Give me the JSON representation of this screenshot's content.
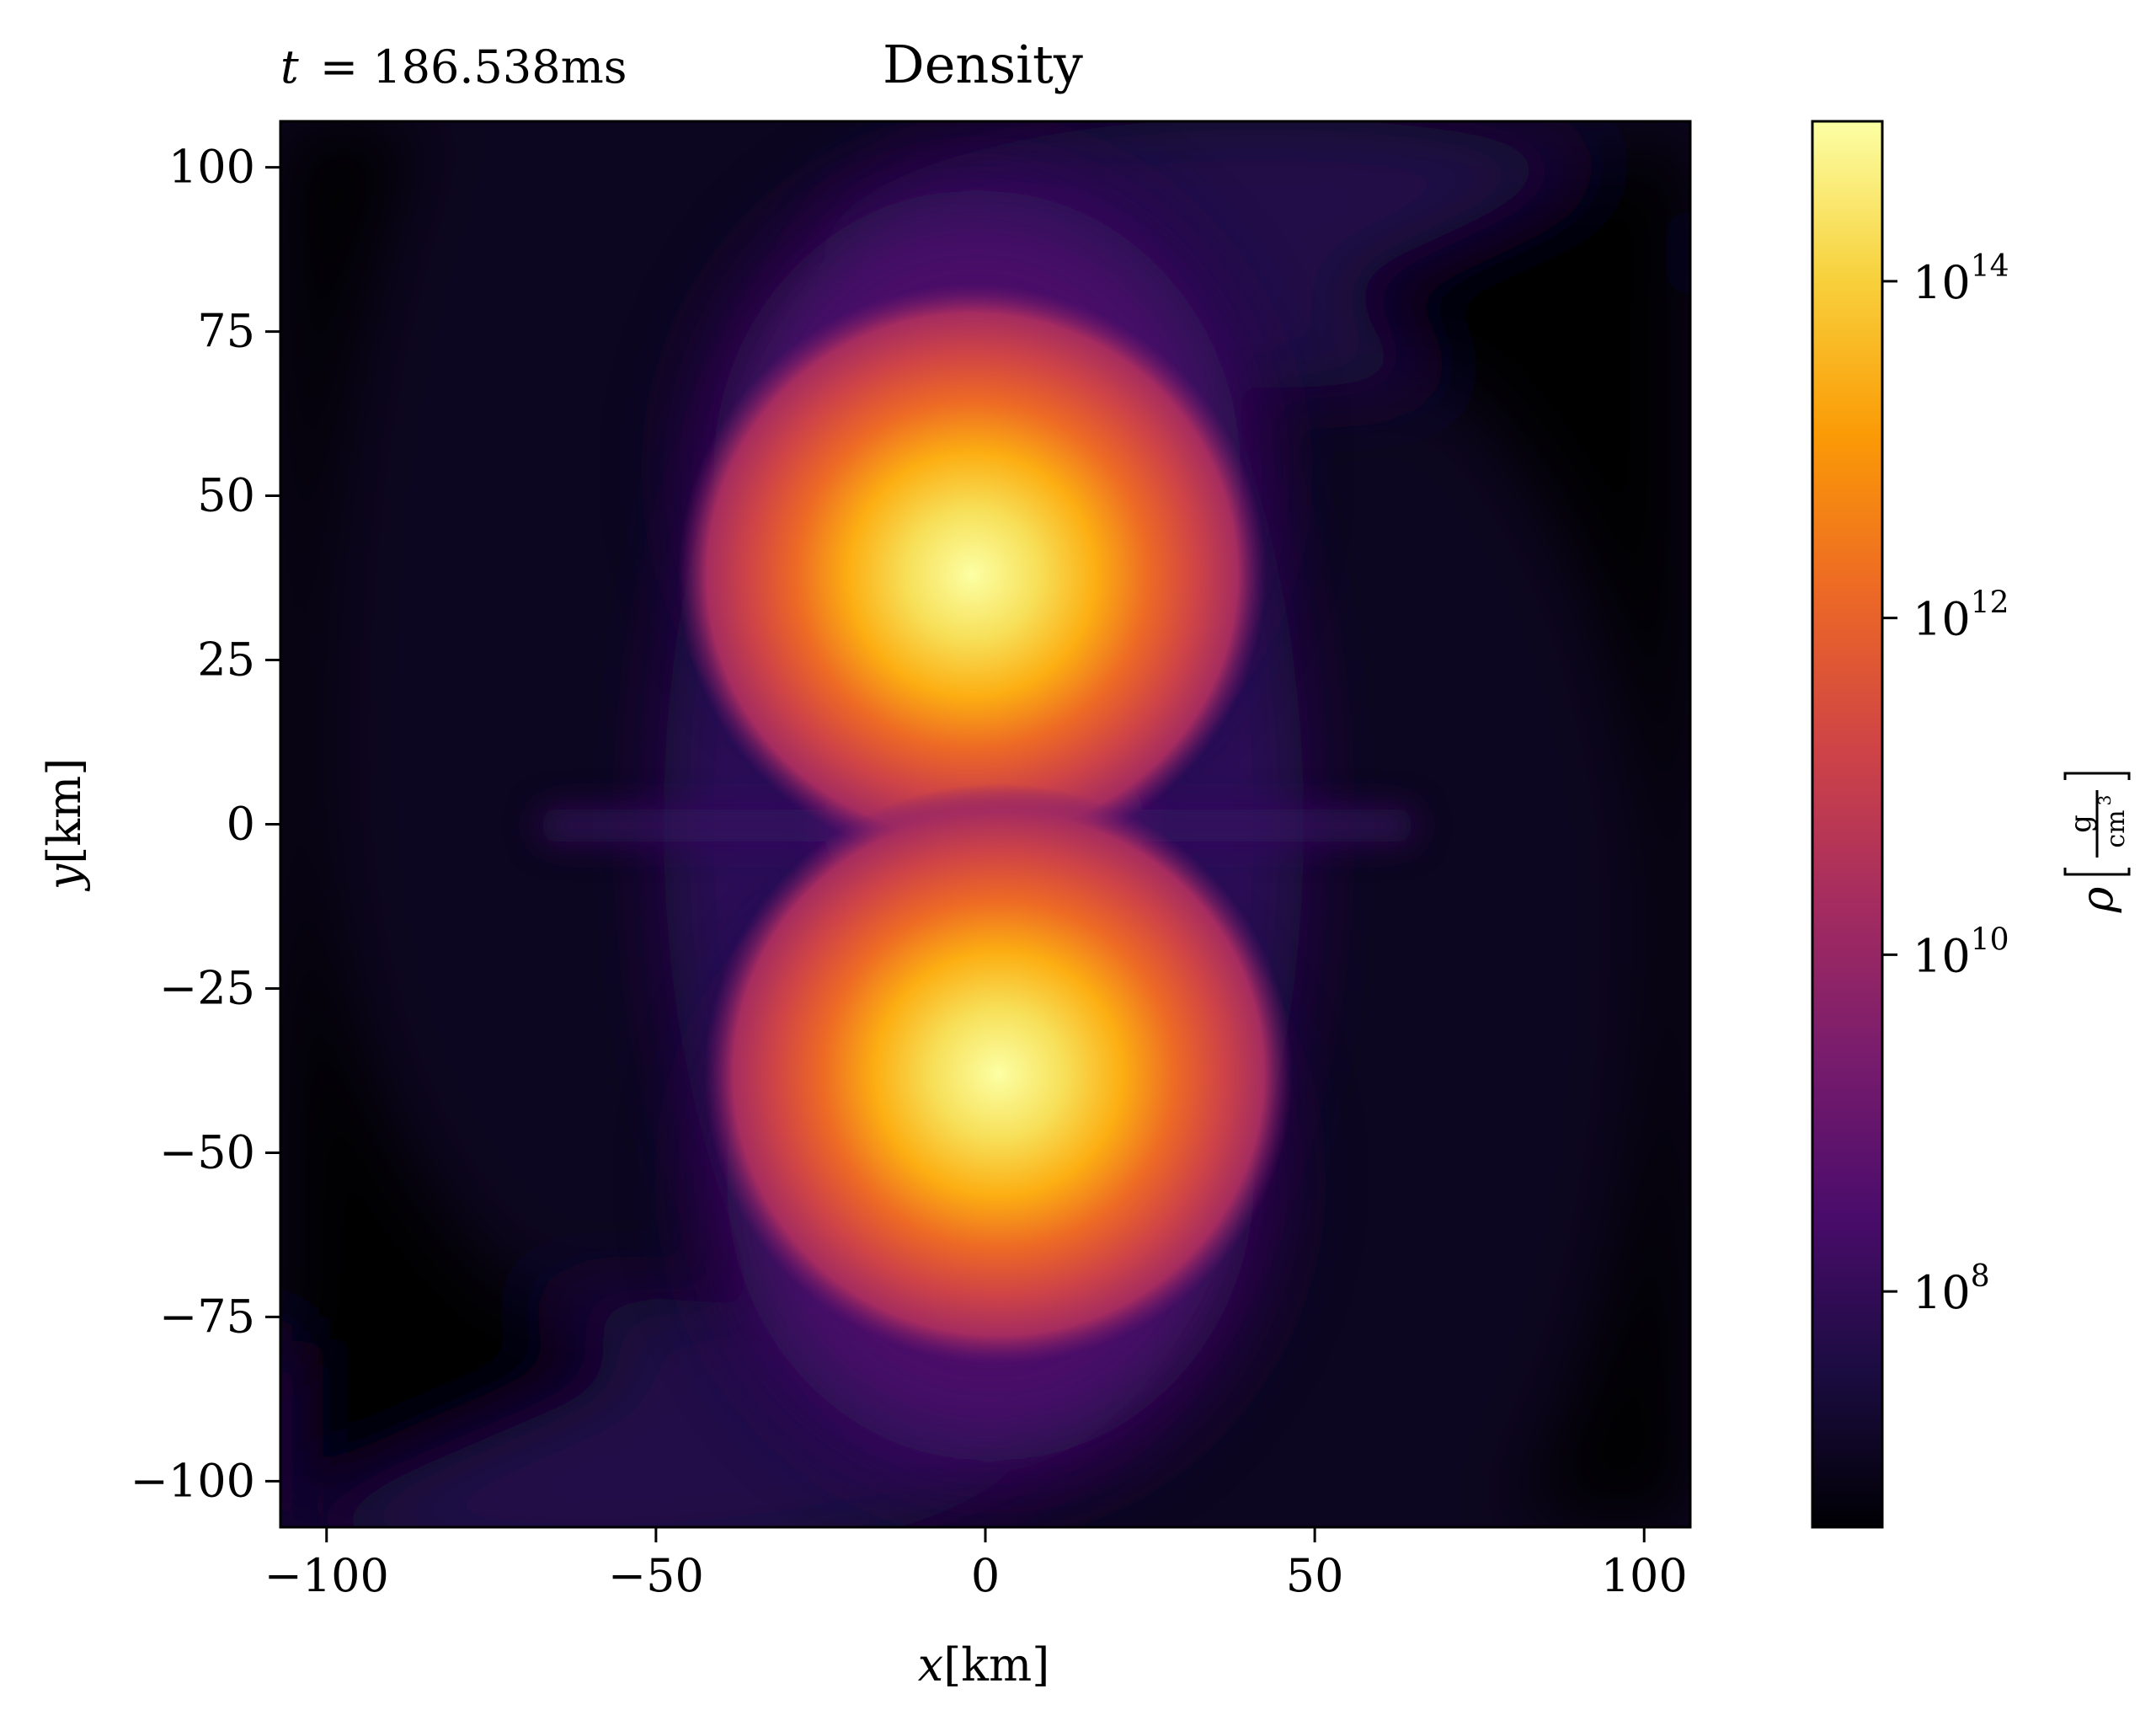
{
  "chart_data": {
    "type": "heatmap",
    "title": "Density",
    "annotation": {
      "label": "t = 186.538ms",
      "symbol": "t",
      "value": "186.538ms"
    },
    "xlabel": {
      "symbol": "x",
      "unit": "[km]"
    },
    "ylabel": {
      "symbol": "y",
      "unit": "[km]"
    },
    "xlim": [
      -107,
      107
    ],
    "ylim": [
      -107,
      107
    ],
    "xticks": [
      {
        "value": -100,
        "label": "−100"
      },
      {
        "value": -50,
        "label": "−50"
      },
      {
        "value": 0,
        "label": "0"
      },
      {
        "value": 50,
        "label": "50"
      },
      {
        "value": 100,
        "label": "100"
      }
    ],
    "yticks": [
      {
        "value": 100,
        "label": "100"
      },
      {
        "value": 75,
        "label": "75"
      },
      {
        "value": 50,
        "label": "50"
      },
      {
        "value": 25,
        "label": "25"
      },
      {
        "value": 0,
        "label": "0"
      },
      {
        "value": -25,
        "label": "−25"
      },
      {
        "value": -50,
        "label": "−50"
      },
      {
        "value": -75,
        "label": "−75"
      },
      {
        "value": -100,
        "label": "−100"
      }
    ],
    "colorbar": {
      "scale": "log",
      "colormap": "inferno",
      "range_log10": [
        6.6,
        14.95
      ],
      "label": {
        "symbol": "ρ",
        "numerator": "g",
        "denominator": "cm",
        "denominator_exp": "3"
      },
      "ticks": [
        {
          "log10": 8,
          "base": "10",
          "exp": "8"
        },
        {
          "log10": 10,
          "base": "10",
          "exp": "10"
        },
        {
          "log10": 12,
          "base": "10",
          "exp": "12"
        },
        {
          "log10": 14,
          "base": "10",
          "exp": "14"
        }
      ]
    },
    "features": [
      {
        "name": "upper-core",
        "x": -2,
        "y": 38,
        "peak_log10": 14.8
      },
      {
        "name": "lower-core",
        "x": 2,
        "y": -38,
        "peak_log10": 14.8
      }
    ],
    "colors": {
      "inferno": [
        "#000004",
        "#1b0c41",
        "#4a0c6b",
        "#781c6d",
        "#a52c60",
        "#cf4446",
        "#ed6925",
        "#fb9b06",
        "#f7d13d",
        "#fcffa4"
      ]
    }
  }
}
